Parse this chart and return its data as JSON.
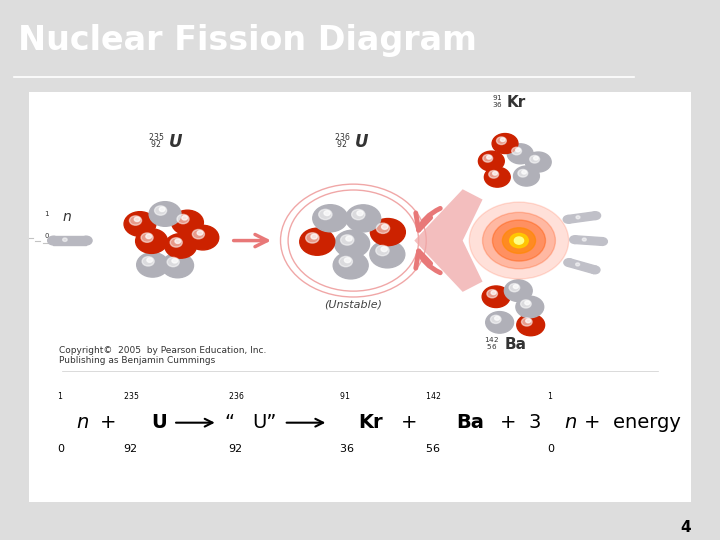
{
  "title": "Nuclear Fission Diagram",
  "title_bg_color": "#3b3bdd",
  "title_text_color": "#ffffff",
  "title_fontsize": 24,
  "bg_color": "#ffffff",
  "outer_border_color": "#cc8800",
  "slide_bg": "#dddddd",
  "copyright": "Copyright©  2005  by Pearson Education, Inc.\nPublishing as Benjamin Cummings",
  "copyright_fontsize": 6.5,
  "page_number": "4",
  "arrow_color": "#e87878"
}
